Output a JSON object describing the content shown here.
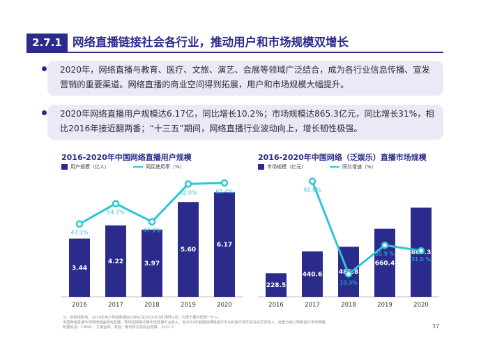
{
  "header": {
    "section_number": "2.7.1",
    "title": "网络直播链接社会各行业，推动用户和市场规模双增长"
  },
  "bullets": [
    "2020年，网络直播与教育、医疗、文旅、演艺、会展等领域广泛结合，成为各行业信息传播、宣发营销的重要渠道。网络直播的商业空间得到拓展，用户和市场规模大幅提升。",
    "2020年网络直播用户规模达6.17亿，同比增长10.2%；市场规模达865.3亿元，同比增长31%，相比2016年接近翻两番；“十三五”期间，网络直播行业波动向上，增长韧性极强。"
  ],
  "colors": {
    "bar": "#2b2b8c",
    "line": "#2ec5d6",
    "marker_fill": "#ffffff"
  },
  "chart_data": [
    {
      "type": "bar",
      "title": "2016-2020年中国网络直播用户规模",
      "categories": [
        "2016",
        "2017",
        "2018",
        "2019",
        "2020"
      ],
      "series": [
        {
          "name": "用户规模（亿人）",
          "kind": "bar",
          "values": [
            3.44,
            4.22,
            3.97,
            5.6,
            6.17
          ],
          "labels": [
            "3.44",
            "4.22",
            "3.97",
            "5.60",
            "6.17"
          ]
        },
        {
          "name": "网民使用率（%）",
          "kind": "line",
          "values": [
            47.1,
            54.7,
            47.9,
            62.0,
            62.4
          ],
          "labels": [
            "47.1%",
            "54.7%",
            "47.9%",
            "62.0%",
            "62.4%"
          ]
        }
      ],
      "ylim_bar": [
        0,
        7.3
      ],
      "ylim_line": [
        20,
        66
      ],
      "grid": false,
      "legend_position": "top-left"
    },
    {
      "type": "bar",
      "title": "2016-2020年中国网络（泛娱乐）直播市场规模",
      "categories": [
        "2016",
        "2017",
        "2018",
        "2019",
        "2020"
      ],
      "series": [
        {
          "name": "市场规模（亿元）",
          "kind": "bar",
          "values": [
            228.5,
            440.6,
            485.8,
            660.4,
            865.3
          ],
          "labels": [
            "228.5",
            "440.6",
            "485.8",
            "660.4",
            "865.3"
          ]
        },
        {
          "name": "同比增速（%）",
          "kind": "line",
          "values": [
            null,
            92.8,
            10.3,
            35.9,
            31.0
          ],
          "labels": [
            "",
            "92.8%",
            "10.3%",
            "35.9 %",
            "31.0 %"
          ]
        }
      ],
      "ylim_bar": [
        0,
        1200
      ],
      "ylim_line": [
        -10,
        100
      ],
      "grid": false,
      "legend_position": "top-left"
    }
  ],
  "footnote": [
    "注：受疫情影响，2019年用户规模数据由CNNIC在2020年3月调研公布，为便于展示而统一计入。",
    "中国网络直播市场规模涵盖游戏直播、秀场直播等泛娱乐类直播平台收入，自2019年起剔除网络音乐平台的音乐演艺类互动打赏收入，此部分纳入网络音乐市场规模。",
    "数据来源：CNNIC、艾瑞咨询、易观、腾讯研究院综合测算，2021.2"
  ],
  "page_number": "37"
}
